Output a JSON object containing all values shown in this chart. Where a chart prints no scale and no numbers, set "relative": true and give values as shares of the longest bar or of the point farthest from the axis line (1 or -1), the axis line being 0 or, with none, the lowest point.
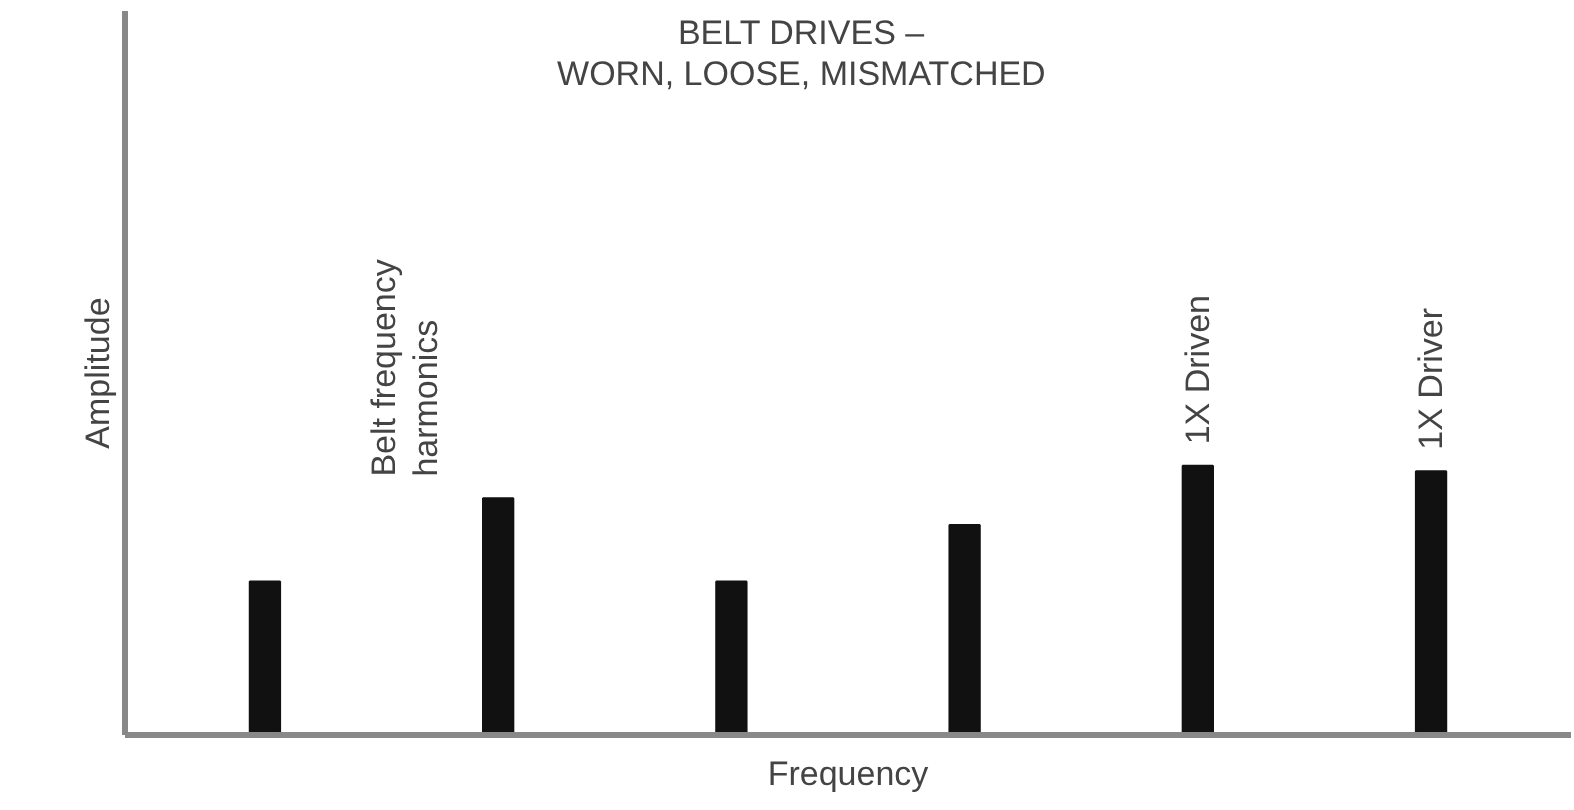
{
  "chart_data": {
    "type": "bar",
    "title": "BELT DRIVES –\nWORN, LOOSE, MISMATCHED",
    "xlabel": "Frequency",
    "ylabel": "Amplitude",
    "relative": true,
    "grid": false,
    "categories": [
      null,
      null,
      null,
      null,
      null,
      null
    ],
    "values": [
      0.57,
      0.88,
      0.57,
      0.78,
      1,
      0.98
    ],
    "color": "#111111",
    "annotations": [
      "Belt frequency\nharmonics",
      "1X Driven",
      "1X Driver"
    ]
  }
}
